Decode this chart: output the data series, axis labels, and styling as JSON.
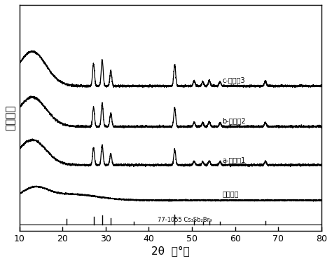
{
  "xlabel": "2θ（°）",
  "ylabel": "相对强度",
  "xmin": 10,
  "xmax": 80,
  "xticks": [
    10,
    20,
    30,
    40,
    50,
    60,
    70,
    80
  ],
  "background_color": "#ffffff",
  "line_color": "#000000",
  "ref_label": "77-1055 Cs₃Sb₂Br₉",
  "curve_labels": [
    "c-实施失3",
    "b-实施失2",
    "a-实施失1",
    "基础玻璃"
  ],
  "ref_peaks": [
    21.0,
    27.2,
    29.2,
    31.2,
    36.5,
    46.0,
    50.5,
    52.5,
    54.0,
    56.5,
    67.0
  ],
  "ref_heights": [
    0.14,
    0.2,
    0.22,
    0.16,
    0.08,
    0.24,
    0.1,
    0.08,
    0.09,
    0.07,
    0.09
  ],
  "crystal_peaks": [
    27.2,
    29.2,
    31.2,
    46.0,
    50.5,
    52.5,
    54.0,
    56.5,
    67.0
  ],
  "crystal_heights_c": [
    0.55,
    0.65,
    0.38,
    0.52,
    0.12,
    0.1,
    0.14,
    0.1,
    0.12
  ],
  "crystal_heights_b": [
    0.48,
    0.58,
    0.33,
    0.45,
    0.1,
    0.09,
    0.12,
    0.09,
    0.1
  ],
  "crystal_heights_a": [
    0.42,
    0.5,
    0.28,
    0.38,
    0.09,
    0.08,
    0.1,
    0.08,
    0.09
  ],
  "offsets": [
    3.2,
    2.2,
    1.25,
    0.38
  ],
  "ref_baseline": -0.22,
  "ylim_bottom": -0.38,
  "ylim_top": 5.2
}
